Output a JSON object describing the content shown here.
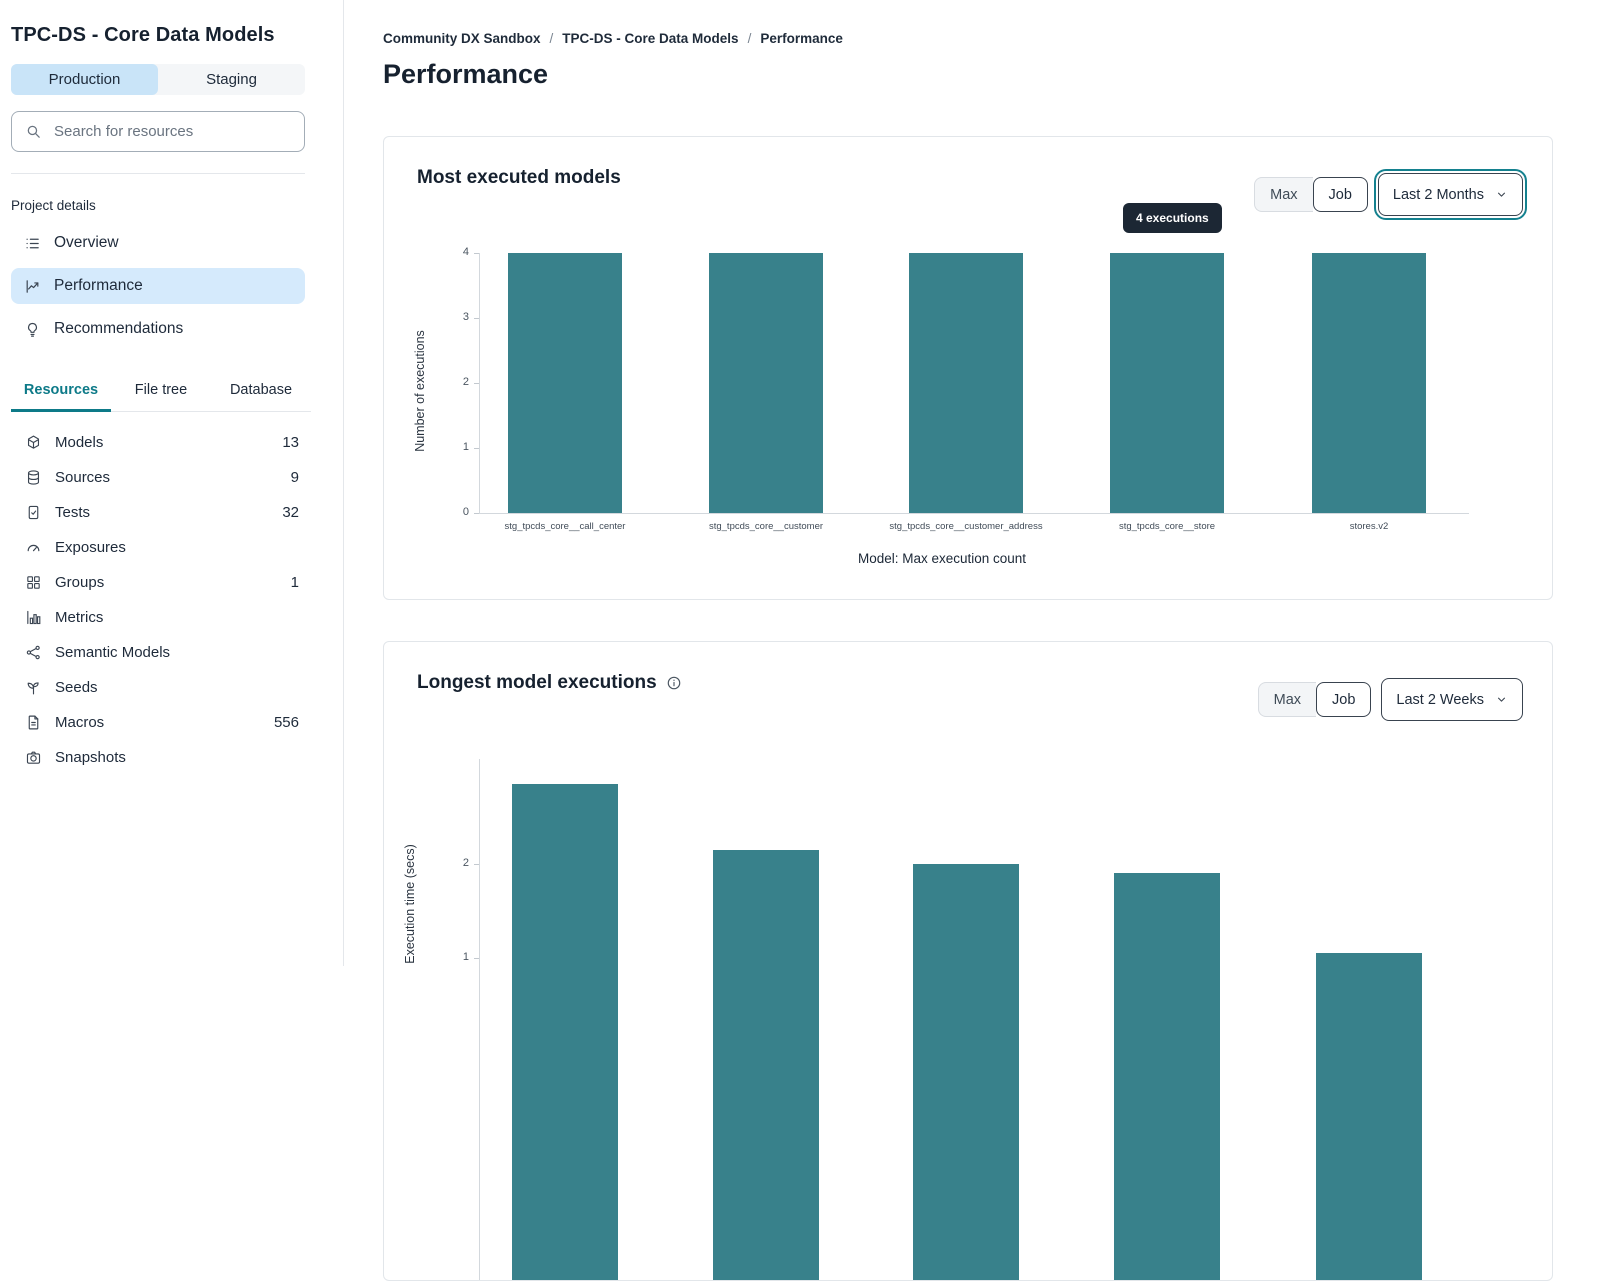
{
  "sidebar": {
    "title": "TPC-DS - Core Data Models",
    "env_tabs": [
      {
        "label": "Production"
      },
      {
        "label": "Staging"
      }
    ],
    "search": {
      "placeholder": "Search for resources"
    },
    "project_details_label": "Project details",
    "nav": [
      {
        "label": "Overview",
        "icon": "list-icon"
      },
      {
        "label": "Performance",
        "icon": "line-chart-icon"
      },
      {
        "label": "Recommendations",
        "icon": "lightbulb-icon"
      }
    ],
    "resource_tabs": [
      {
        "label": "Resources"
      },
      {
        "label": "File tree"
      },
      {
        "label": "Database"
      }
    ],
    "resources": [
      {
        "label": "Models",
        "count": "13",
        "icon": "cube-icon"
      },
      {
        "label": "Sources",
        "count": "9",
        "icon": "database-icon"
      },
      {
        "label": "Tests",
        "count": "32",
        "icon": "clipboard-check-icon"
      },
      {
        "label": "Exposures",
        "count": "",
        "icon": "gauge-icon"
      },
      {
        "label": "Groups",
        "count": "1",
        "icon": "grid-icon"
      },
      {
        "label": "Metrics",
        "count": "",
        "icon": "bar-chart-icon"
      },
      {
        "label": "Semantic Models",
        "count": "",
        "icon": "graph-icon"
      },
      {
        "label": "Seeds",
        "count": "",
        "icon": "seedling-icon"
      },
      {
        "label": "Macros",
        "count": "556",
        "icon": "document-icon"
      },
      {
        "label": "Snapshots",
        "count": "",
        "icon": "camera-icon"
      }
    ]
  },
  "breadcrumb": {
    "items": [
      "Community DX Sandbox",
      "TPC-DS - Core Data Models",
      "Performance"
    ],
    "separator": "/"
  },
  "page_title": "Performance",
  "colors": {
    "accent_teal": "#0d7a88",
    "bar_teal": "#38818b",
    "active_blue": "#cde7fa",
    "tooltip_bg": "#1c2734"
  },
  "chart_data": [
    {
      "type": "bar",
      "title": "Most executed models",
      "categories": [
        "stg_tpcds_core__call_center",
        "stg_tpcds_core__customer",
        "stg_tpcds_core__customer_address",
        "stg_tpcds_core__store",
        "stores.v2"
      ],
      "values": [
        4,
        4,
        4,
        4,
        4
      ],
      "ylabel": "Number of executions",
      "xlabel": "Model: Max execution count",
      "ylim": [
        0,
        4
      ],
      "yticks": [
        0,
        1,
        2,
        3,
        4
      ],
      "grid": false,
      "legend": "none",
      "bar_color": "#38818b",
      "tooltip": "4 executions",
      "tooltip_target": "stg_tpcds_core__store",
      "view_toggle": {
        "options": [
          "Max",
          "Job"
        ],
        "selected": "Job"
      },
      "time_range": "Last 2 Months"
    },
    {
      "type": "bar",
      "title": "Longest model executions",
      "categories": [
        "",
        "",
        "",
        "",
        ""
      ],
      "values": [
        2.85,
        2.15,
        2.0,
        1.9,
        1.05
      ],
      "ylabel": "Execution time (secs)",
      "xlabel": "",
      "yticks": [
        1,
        2
      ],
      "grid": false,
      "legend": "none",
      "bar_color": "#38818b",
      "view_toggle": {
        "options": [
          "Max",
          "Job"
        ],
        "selected": "Job"
      },
      "time_range": "Last 2 Weeks",
      "layout_note": "chart clipped by viewport bottom; x-axis labels not visible"
    }
  ]
}
